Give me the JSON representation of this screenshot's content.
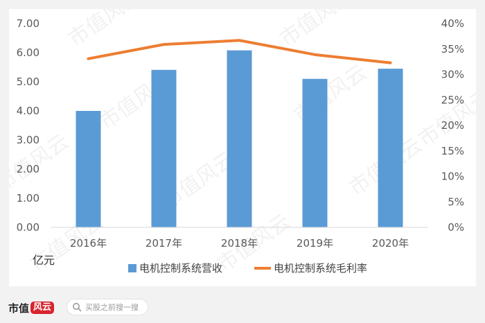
{
  "chart_data": {
    "type": "bar+line",
    "categories": [
      "2016年",
      "2017年",
      "2018年",
      "2019年",
      "2020年"
    ],
    "series": [
      {
        "name": "电机控制系统营收",
        "type": "bar",
        "axis": "left",
        "values": [
          4.0,
          5.41,
          6.08,
          5.1,
          5.45
        ]
      },
      {
        "name": "电机控制系统毛利率",
        "type": "line",
        "axis": "right",
        "values": [
          33.1,
          35.9,
          36.7,
          33.9,
          32.3
        ]
      }
    ],
    "left_axis": {
      "unit_label": "亿元",
      "ylim": [
        0,
        7
      ],
      "ticks": [
        "0.00",
        "1.00",
        "2.00",
        "3.00",
        "4.00",
        "5.00",
        "6.00",
        "7.00"
      ]
    },
    "right_axis": {
      "ylim": [
        0,
        40
      ],
      "ticks": [
        "0%",
        "5%",
        "10%",
        "15%",
        "20%",
        "25%",
        "30%",
        "35%",
        "40%"
      ]
    },
    "grid": false,
    "legend_position": "bottom",
    "colors": {
      "bar": "#5b9bd5",
      "line": "#ed7d31"
    }
  },
  "watermark": "市值风云",
  "footer": {
    "brand": "市值",
    "brand_mark": "风云",
    "search_placeholder": "买股之前搜一搜"
  }
}
